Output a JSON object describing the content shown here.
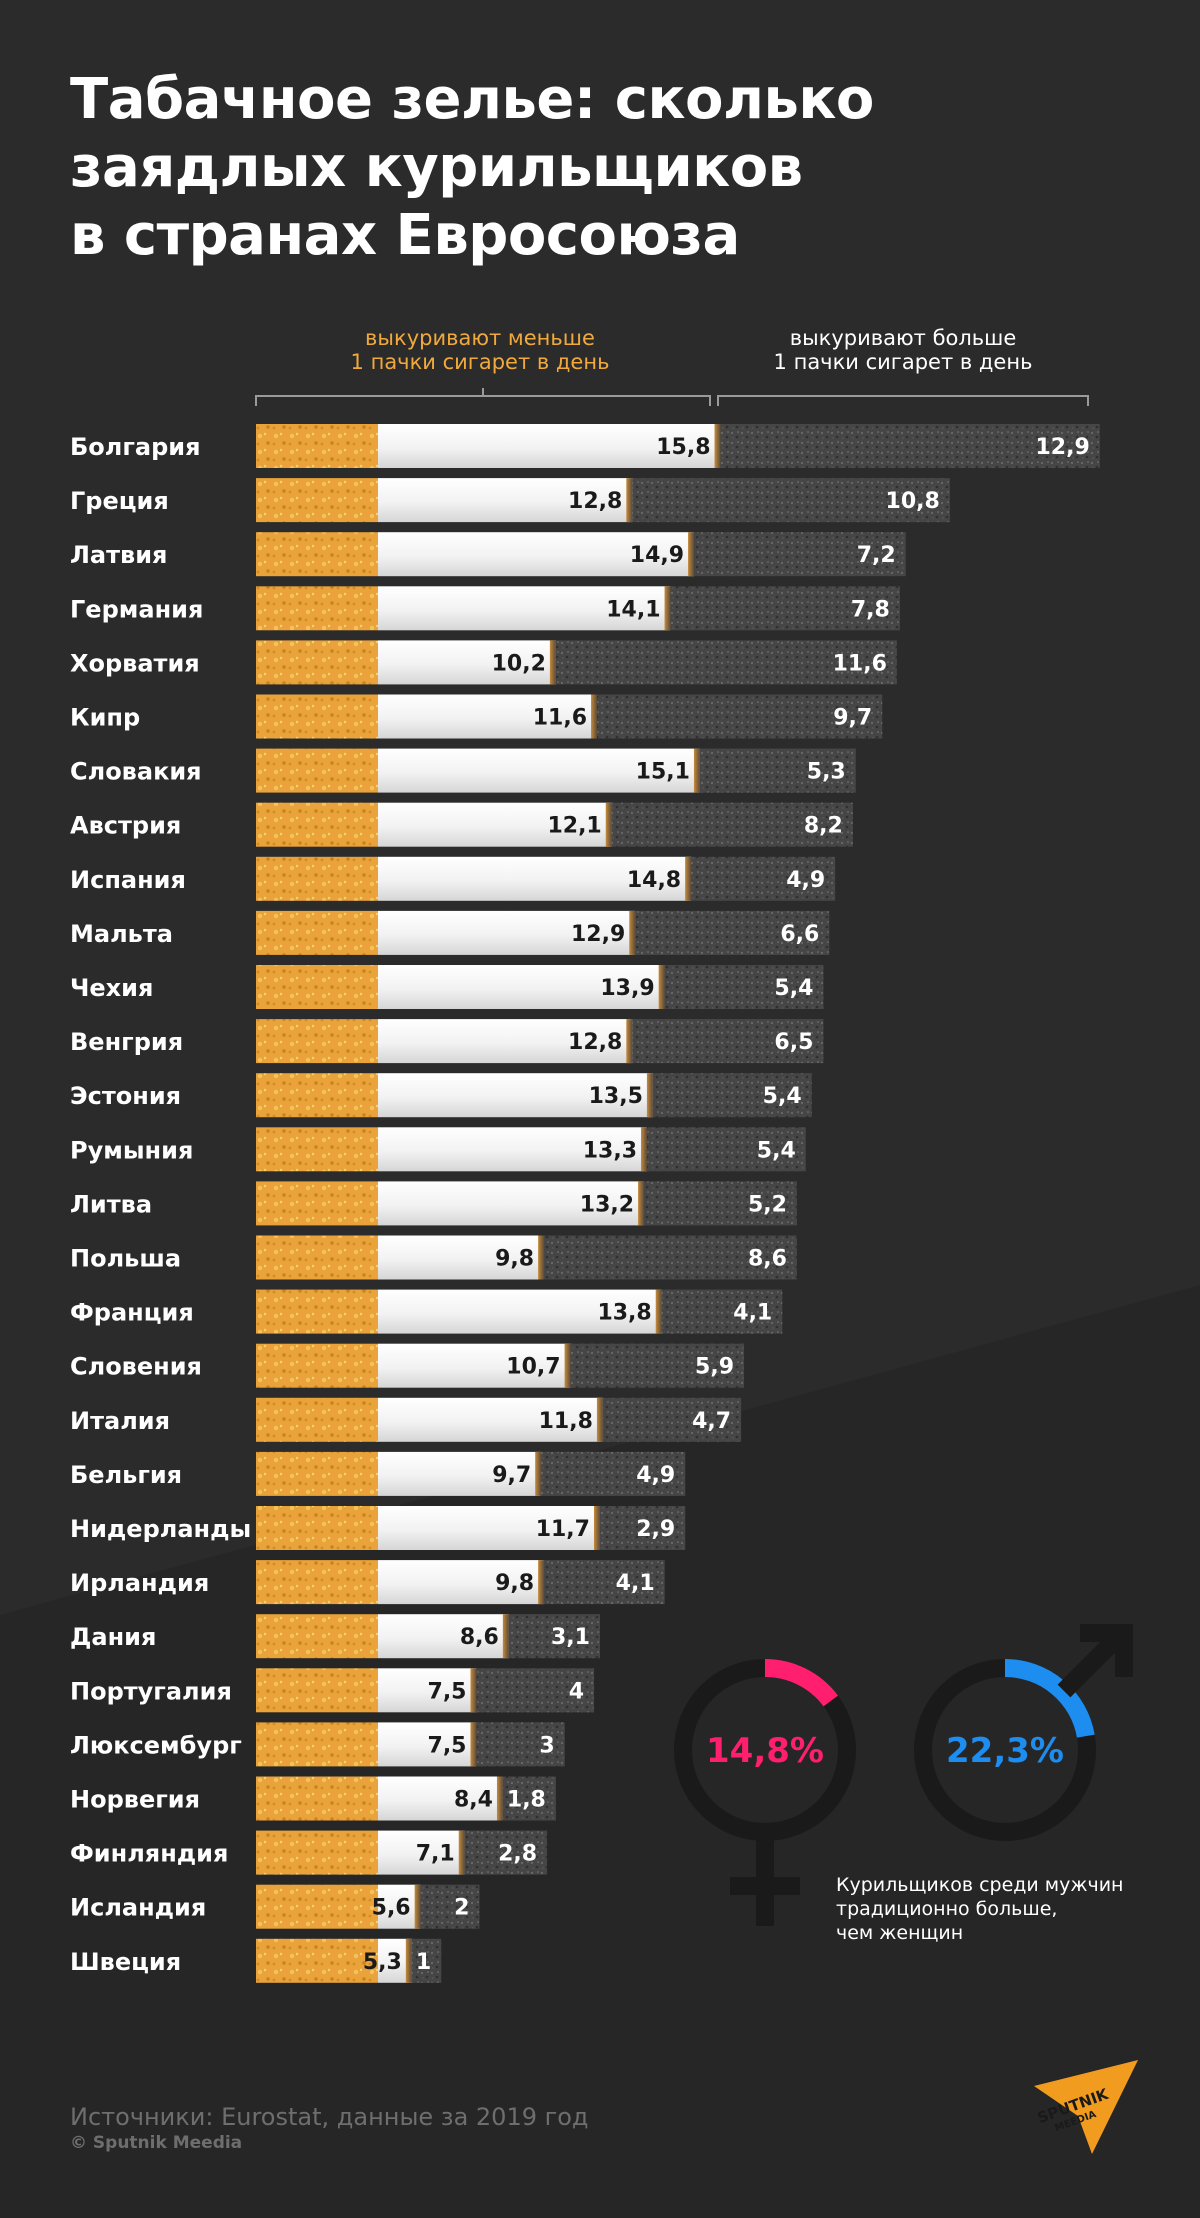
{
  "title_lines": [
    "Табачное зелье: сколько",
    "заядлых курильщиков",
    "в странах Евросоюза"
  ],
  "legend": {
    "less_lines": [
      "выкуривают меньше",
      "1 пачки сигарет в день"
    ],
    "more_lines": [
      "выкуривают больше",
      "1 пачки сигарет в день"
    ]
  },
  "colors": {
    "background": "#2b2b2b",
    "filter": "#e9a33a",
    "paper": "#f4f4f4",
    "ash": "#4a4a4a",
    "less_legend": "#f2a93b",
    "women": "#ff1f6e",
    "men": "#1e8df0"
  },
  "chart_data": {
    "type": "bar",
    "orientation": "horizontal",
    "stacked": true,
    "categories": [
      "Болгария",
      "Греция",
      "Латвия",
      "Германия",
      "Хорватия",
      "Кипр",
      "Словакия",
      "Австрия",
      "Испания",
      "Мальта",
      "Чехия",
      "Венгрия",
      "Эстония",
      "Румыния",
      "Литва",
      "Польша",
      "Франция",
      "Словения",
      "Италия",
      "Бельгия",
      "Нидерланды",
      "Ирландия",
      "Дания",
      "Португалия",
      "Люксембург",
      "Норвегия",
      "Финляндия",
      "Исландия",
      "Швеция"
    ],
    "series": [
      {
        "name": "выкуривают меньше 1 пачки сигарет в день",
        "values": [
          15.8,
          12.8,
          14.9,
          14.1,
          10.2,
          11.6,
          15.1,
          12.1,
          14.8,
          12.9,
          13.9,
          12.8,
          13.5,
          13.3,
          13.2,
          9.8,
          13.8,
          10.7,
          11.8,
          9.7,
          11.7,
          9.8,
          8.6,
          7.5,
          7.5,
          8.4,
          7.1,
          5.6,
          5.3
        ]
      },
      {
        "name": "выкуривают больше 1 пачки сигарет в день",
        "values": [
          12.9,
          10.8,
          7.2,
          7.8,
          11.6,
          9.7,
          5.3,
          8.2,
          4.9,
          6.6,
          5.4,
          6.5,
          5.4,
          5.4,
          5.2,
          8.6,
          4.1,
          5.9,
          4.7,
          4.9,
          2.9,
          4.1,
          3.1,
          4,
          3,
          1.8,
          2.8,
          2,
          1
        ]
      }
    ],
    "value_labels": {
      "less": [
        "15,8",
        "12,8",
        "14,9",
        "14,1",
        "10,2",
        "11,6",
        "15,1",
        "12,1",
        "14,8",
        "12,9",
        "13,9",
        "12,8",
        "13,5",
        "13,3",
        "13,2",
        "9,8",
        "13,8",
        "10,7",
        "11,8",
        "9,7",
        "11,7",
        "9,8",
        "8,6",
        "7,5",
        "7,5",
        "8,4",
        "7,1",
        "5,6",
        "5,3"
      ],
      "more": [
        "12,9",
        "10,8",
        "7,2",
        "7,8",
        "11,6",
        "9,7",
        "5,3",
        "8,2",
        "4,9",
        "6,6",
        "5,4",
        "6,5",
        "5,4",
        "5,4",
        "5,2",
        "8,6",
        "4,1",
        "5,9",
        "4,7",
        "4,9",
        "2,9",
        "4,1",
        "3,1",
        "4",
        "3",
        "1,8",
        "2,8",
        "2",
        "1"
      ]
    }
  },
  "gender": {
    "women": {
      "value": 14.8,
      "label": "14,8%",
      "icon": "female-symbol-icon"
    },
    "men": {
      "value": 22.3,
      "label": "22,3%",
      "icon": "male-symbol-icon"
    },
    "note_lines": [
      "Курильщиков среди мужчин",
      "традиционно больше,",
      "чем женщин"
    ]
  },
  "source": "Источники: Eurostat, данные за 2019 год",
  "copyright": "© Sputnik Meedia",
  "logo": {
    "line1": "SPUTNIK",
    "line2": "MEEDIA",
    "icon": "sputnik-logo-icon"
  }
}
